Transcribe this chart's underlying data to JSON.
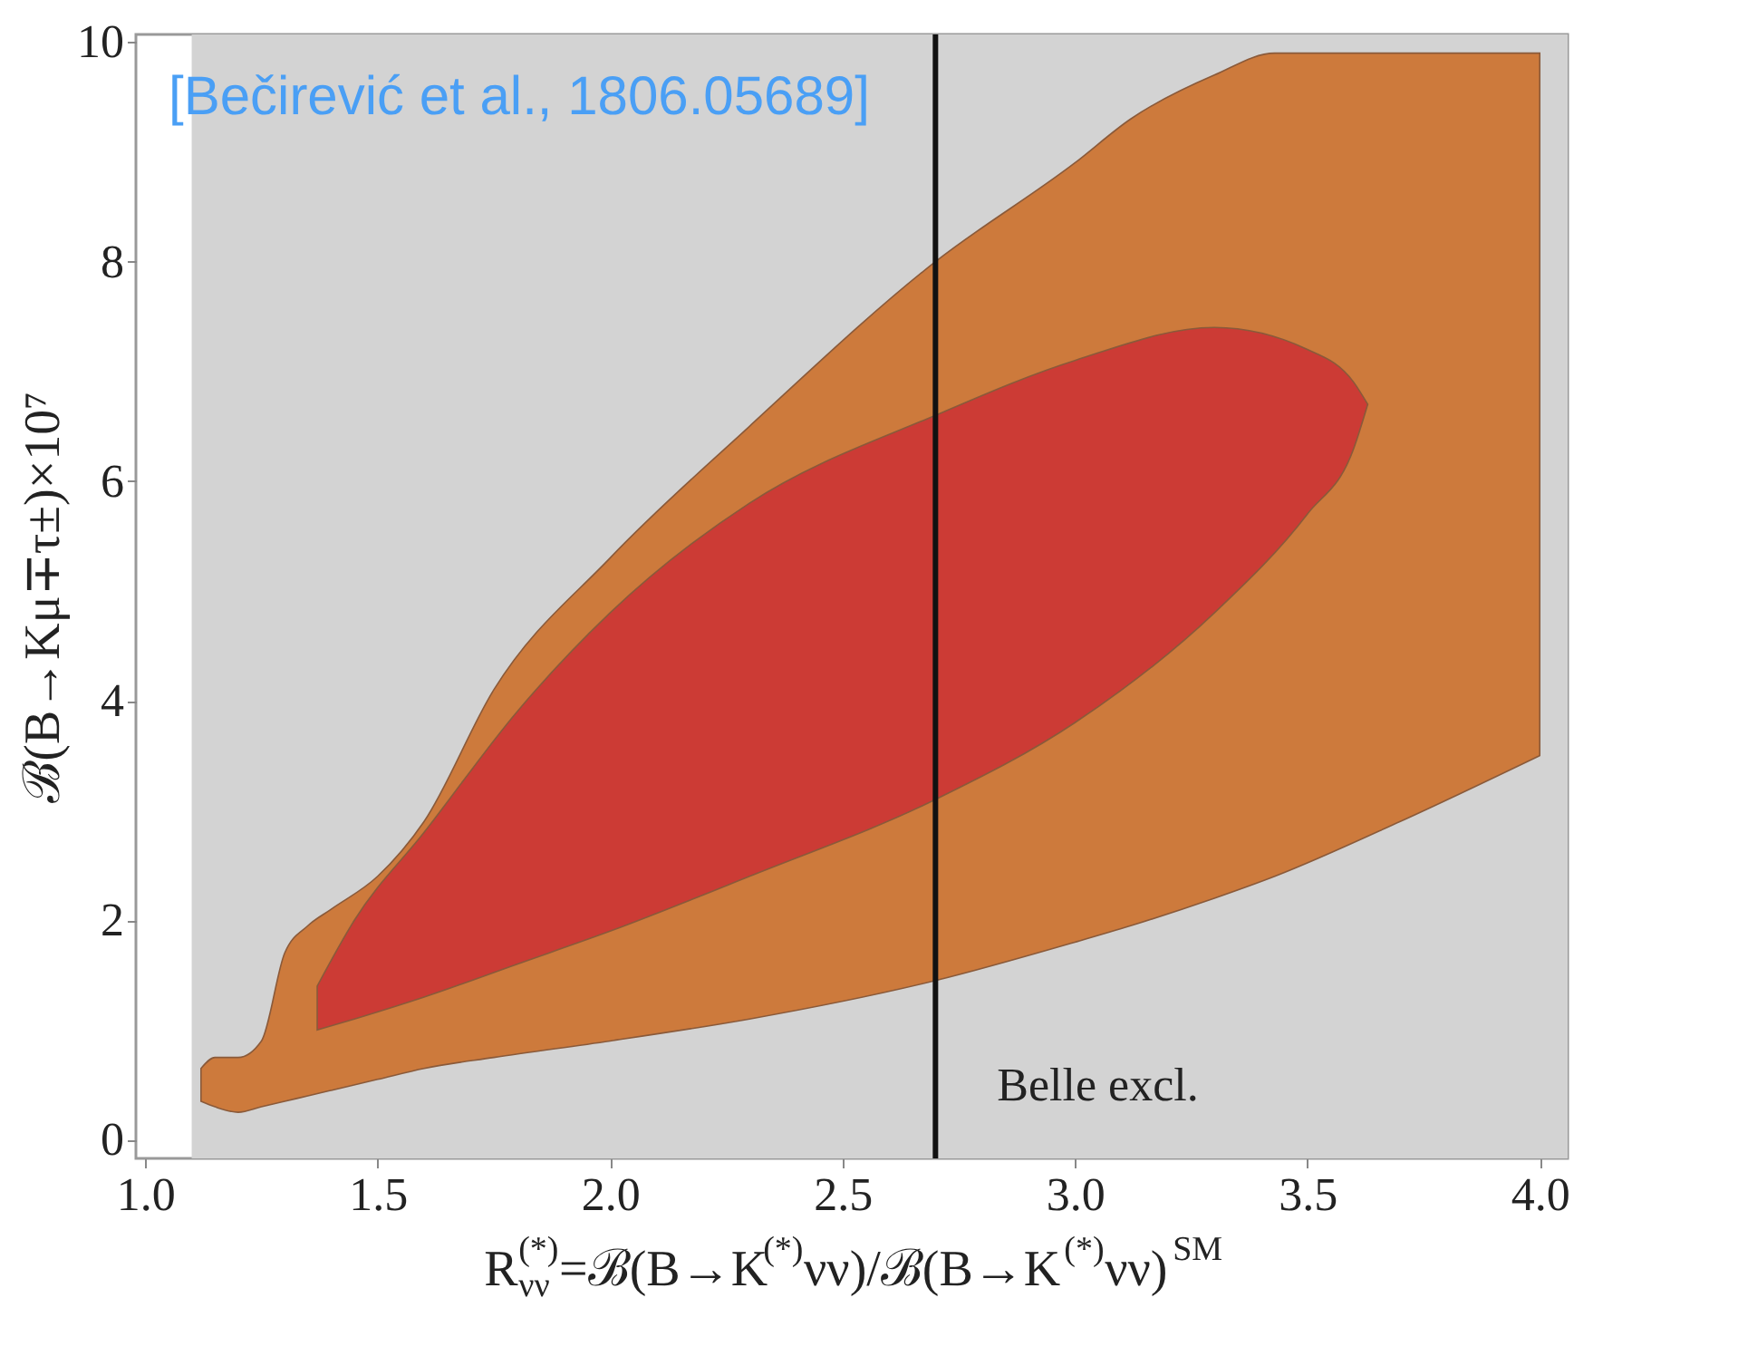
{
  "chart_data": {
    "type": "area",
    "xlabel": "R$_{νν}$$^{(*)}$=ℬ(B→K$^{(*)}$νν)/ℬ(B→K$^{(*)}$νν)$^{SM}$",
    "ylabel": "ℬ(B→Kμ∓τ±)×10⁷",
    "annotations": [
      "[Bečirević et al., 1806.05689]"
    ],
    "xlim": [
      0.98,
      4.06
    ],
    "ylim": [
      -0.17,
      10.07
    ],
    "xticks": [
      {
        "value": 1,
        "label": "1.0"
      },
      {
        "value": 1.5,
        "label": "1.5"
      },
      {
        "value": 2,
        "label": "2.0"
      },
      {
        "value": 2.5,
        "label": "2.5"
      },
      {
        "value": 3,
        "label": "3.0"
      },
      {
        "value": 3.5,
        "label": "3.5"
      },
      {
        "value": 4,
        "label": "4.0"
      }
    ],
    "yticks": [
      0,
      2,
      4,
      6,
      8,
      10
    ],
    "grid": false,
    "bands": [
      {
        "axis": "x",
        "from": 1.1,
        "to": 4.06,
        "color": "#d3d3d3"
      }
    ],
    "ref_lines": [
      {
        "axis": "x",
        "value": 2.7,
        "label": "Belle excl.",
        "color": "#111111"
      }
    ],
    "series": [
      {
        "color": "#cd7a3c",
        "x": [
          1.12,
          1.15,
          1.2,
          1.25,
          1.3,
          1.35,
          1.4,
          1.5,
          1.6,
          1.75,
          2.0,
          2.3,
          2.7,
          3.0,
          3.12,
          3.3,
          3.43,
          3.7,
          4.0
        ],
        "values": [
          null,
          null,
          null,
          null,
          null,
          null,
          null,
          null,
          null,
          null,
          null,
          null,
          null,
          null,
          null,
          null,
          null,
          null,
          null
        ],
        "lower": [
          0.35,
          0.3,
          0.25,
          0.3,
          0.35,
          0.4,
          0.45,
          0.55,
          0.65,
          0.75,
          0.9,
          1.1,
          1.45,
          1.8,
          1.95,
          2.2,
          2.4,
          2.9,
          3.5
        ],
        "upper": [
          0.65,
          0.75,
          0.75,
          0.9,
          1.7,
          1.95,
          2.1,
          2.4,
          2.9,
          4.1,
          5.3,
          6.5,
          8.0,
          8.9,
          9.3,
          9.7,
          9.9,
          9.9,
          9.9
        ]
      },
      {
        "color": "#cc3b35",
        "x": [
          1.37,
          1.45,
          1.6,
          1.8,
          2.0,
          2.3,
          2.7,
          3.0,
          3.3,
          3.5,
          3.6,
          3.63
        ],
        "values": [
          null,
          null,
          null,
          null,
          null,
          null,
          null,
          null,
          null,
          null,
          null,
          null
        ],
        "lower": [
          1.0,
          1.1,
          1.3,
          1.6,
          1.9,
          2.4,
          3.1,
          3.8,
          4.8,
          5.7,
          6.3,
          6.7
        ],
        "upper": [
          1.4,
          2.0,
          2.8,
          3.9,
          4.8,
          5.8,
          6.6,
          7.1,
          7.4,
          7.2,
          6.9,
          6.7
        ]
      }
    ]
  }
}
